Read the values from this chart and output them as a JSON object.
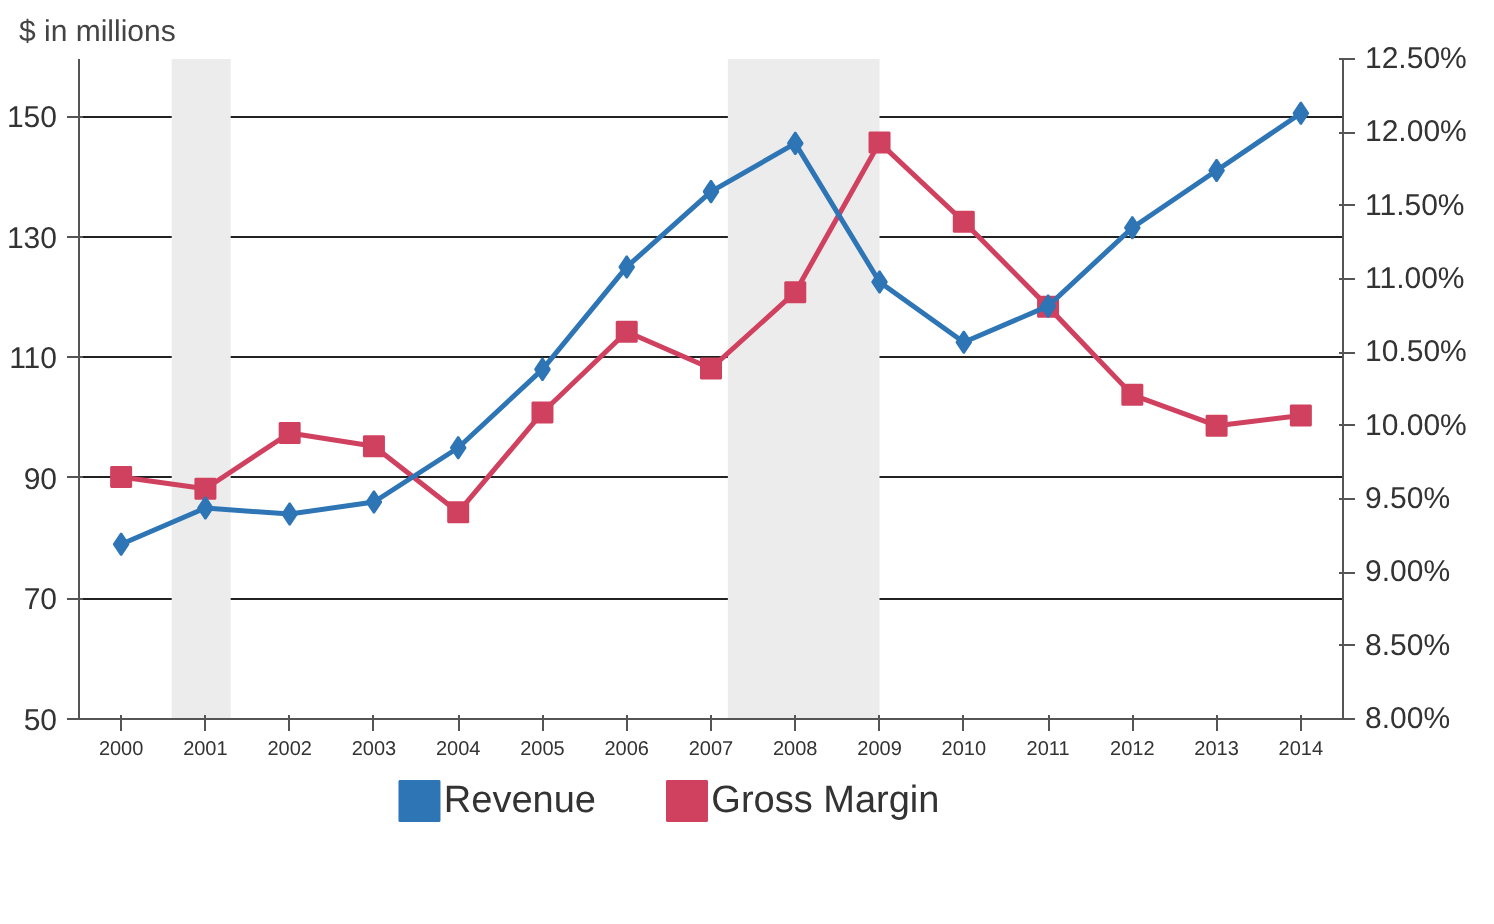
{
  "chart_data": {
    "type": "line",
    "ylabel": "$ in millions",
    "x": [
      2000,
      2001,
      2002,
      2003,
      2004,
      2005,
      2006,
      2007,
      2008,
      2009,
      2010,
      2011,
      2012,
      2013,
      2014
    ],
    "series": [
      {
        "name": "Revenue",
        "color": "#2e75b6",
        "marker": "diamond",
        "values": [
          79,
          85,
          84,
          86,
          95,
          108,
          125,
          137.5,
          145.5,
          122.5,
          112.5,
          118.5,
          131.5,
          141,
          150.5
        ]
      },
      {
        "name": "Gross Margin",
        "color": "#d0415f",
        "marker": "square",
        "axis": "y2",
        "values": [
          9.65,
          9.57,
          9.95,
          9.86,
          9.41,
          10.09,
          10.64,
          10.39,
          10.91,
          11.93,
          11.39,
          10.81,
          10.21,
          10.0,
          10.07
        ]
      }
    ],
    "xlim": [
      1999.5,
      2014.5
    ],
    "xticks": [
      2000,
      2001,
      2002,
      2003,
      2004,
      2005,
      2006,
      2007,
      2008,
      2009,
      2010,
      2011,
      2012,
      2013,
      2014
    ],
    "ylim": [
      50,
      159.5
    ],
    "yticks": [
      50,
      70,
      90,
      110,
      130,
      150
    ],
    "y2lim": [
      8.0,
      12.5
    ],
    "y2ticks": [
      {
        "value": 8.0,
        "label": "8.00%"
      },
      {
        "value": 8.5,
        "label": "8.50%"
      },
      {
        "value": 9.0,
        "label": "9.00%"
      },
      {
        "value": 9.5,
        "label": "9.50%"
      },
      {
        "value": 10.0,
        "label": "10.00%"
      },
      {
        "value": 10.5,
        "label": "10.50%"
      },
      {
        "value": 11.0,
        "label": "11.00%"
      },
      {
        "value": 11.5,
        "label": "11.50%"
      },
      {
        "value": 12.0,
        "label": "12.00%"
      },
      {
        "value": 12.5,
        "label": "12.50%"
      }
    ],
    "bands": [
      {
        "axis": "x",
        "from": 2000.6,
        "to": 2001.3,
        "color": "#ececec"
      },
      {
        "axis": "x",
        "from": 2007.2,
        "to": 2009.0,
        "color": "#ececec"
      }
    ],
    "grid": "y",
    "legend": "bottom",
    "line_style": "solid"
  }
}
